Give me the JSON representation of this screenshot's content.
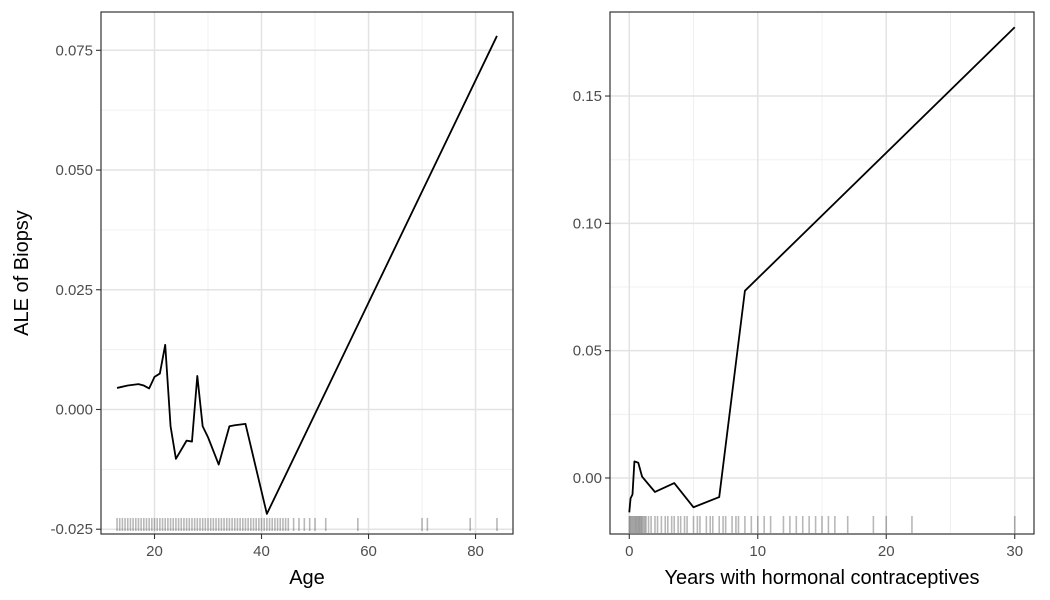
{
  "figure": {
    "ylabel": "ALE of Biopsy"
  },
  "chart_data": [
    {
      "type": "line",
      "xlabel": "Age",
      "ylabel": "ALE of Biopsy",
      "xlim": [
        10,
        87
      ],
      "ylim": [
        -0.026,
        0.083
      ],
      "x_ticks": [
        20,
        40,
        60,
        80
      ],
      "x_tick_labels": [
        "20",
        "40",
        "60",
        "80"
      ],
      "y_ticks": [
        -0.025,
        0.0,
        0.025,
        0.05,
        0.075
      ],
      "y_tick_labels": [
        "-0.025",
        "0.000",
        "0.025",
        "0.050",
        "0.075"
      ],
      "grid": true,
      "line_color": "#000000",
      "series": [
        {
          "x": [
            13,
            15,
            17,
            18,
            19,
            20,
            21,
            22,
            23,
            24,
            26,
            27,
            28,
            29,
            30,
            32,
            34,
            35,
            37,
            41,
            84
          ],
          "y": [
            0.0045,
            0.005,
            0.0053,
            0.005,
            0.0044,
            0.0068,
            0.0075,
            0.0135,
            -0.0035,
            -0.0103,
            -0.0065,
            -0.0067,
            0.007,
            -0.0035,
            -0.0058,
            -0.0115,
            -0.0035,
            -0.0033,
            -0.003,
            -0.0218,
            0.078
          ]
        }
      ],
      "rug": [
        13,
        13.5,
        14,
        14.5,
        15,
        15.5,
        16,
        16.5,
        17,
        17.5,
        18,
        18.5,
        19,
        19.5,
        20,
        20.5,
        21,
        21.5,
        22,
        22.5,
        23,
        23.5,
        24,
        24.5,
        25,
        25.5,
        26,
        26.5,
        27,
        27.5,
        28,
        28.5,
        29,
        29.5,
        30,
        30.5,
        31,
        31.5,
        32,
        32.5,
        33,
        33.5,
        34,
        34.5,
        35,
        35.5,
        36,
        36.5,
        37,
        37.5,
        38,
        38.5,
        39,
        39.5,
        40,
        40.5,
        41,
        41.5,
        42,
        42.5,
        43,
        43.5,
        44,
        44.5,
        45,
        46,
        47,
        48,
        49,
        50,
        52,
        58,
        70,
        71,
        79,
        84
      ]
    },
    {
      "type": "line",
      "xlabel": "Years with hormonal contraceptives",
      "ylabel": "",
      "xlim": [
        -1.5,
        31.5
      ],
      "ylim": [
        -0.022,
        0.183
      ],
      "x_ticks": [
        0,
        10,
        20,
        30
      ],
      "x_tick_labels": [
        "0",
        "10",
        "20",
        "30"
      ],
      "y_ticks": [
        0.0,
        0.05,
        0.1,
        0.15
      ],
      "y_tick_labels": [
        "0.00",
        "0.05",
        "0.10",
        "0.15"
      ],
      "grid": true,
      "line_color": "#000000",
      "series": [
        {
          "x": [
            0,
            0.1,
            0.25,
            0.4,
            0.7,
            1,
            2,
            3.5,
            5,
            7,
            9,
            30
          ],
          "y": [
            -0.0135,
            -0.008,
            -0.0065,
            0.0065,
            0.006,
            0.0005,
            -0.0055,
            -0.002,
            -0.0115,
            -0.0075,
            0.0735,
            0.177
          ]
        }
      ],
      "rug": [
        0,
        0.08,
        0.16,
        0.25,
        0.33,
        0.42,
        0.5,
        0.58,
        0.67,
        0.75,
        0.83,
        0.92,
        1,
        1.1,
        1.2,
        1.3,
        1.5,
        1.7,
        2,
        2.2,
        2.5,
        2.8,
        3,
        3.3,
        3.5,
        3.8,
        4,
        4.3,
        4.5,
        5,
        5.3,
        5.5,
        6,
        6.3,
        6.5,
        7,
        7.3,
        7.5,
        8,
        8.3,
        8.5,
        9,
        9.5,
        10,
        10.5,
        11,
        12,
        12.5,
        13,
        13.5,
        14,
        14.5,
        15,
        15.5,
        16,
        17,
        19,
        20,
        22,
        30
      ]
    }
  ]
}
